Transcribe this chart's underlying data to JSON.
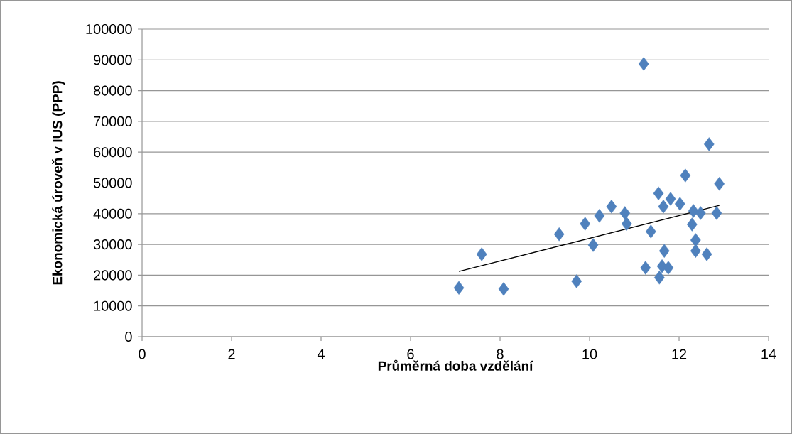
{
  "chart_data": {
    "type": "scatter",
    "xlabel": "Průměrná doba vzdělání",
    "ylabel": "Ekonomická úroveň v IUS (PPP)",
    "series": [
      {
        "color": "#4f81bd",
        "marker": "diamond",
        "x": [
          7.08,
          7.59,
          8.08,
          9.32,
          9.71,
          9.9,
          10.08,
          10.22,
          10.49,
          10.79,
          10.83,
          11.21,
          11.25,
          11.37,
          11.54,
          11.56,
          11.62,
          11.65,
          11.67,
          11.76,
          11.81,
          12.02,
          12.14,
          12.29,
          12.32,
          12.37,
          12.37,
          12.48,
          12.62,
          12.67,
          12.84,
          12.9
        ],
        "values": [
          15900,
          26800,
          15500,
          33300,
          18000,
          36700,
          29800,
          39300,
          42300,
          40200,
          36700,
          88700,
          22400,
          34200,
          46600,
          19200,
          22900,
          42300,
          27900,
          22400,
          44800,
          43200,
          52400,
          36500,
          40900,
          31400,
          27900,
          40200,
          26800,
          62600,
          40200,
          49700
        ]
      },
      {
        "type": "line",
        "color": "#000000",
        "marker": "none",
        "line_style": "solid",
        "x": [
          7.08,
          12.9
        ],
        "values": [
          21200,
          42700
        ]
      }
    ],
    "xlim": [
      0,
      14
    ],
    "xticks": [
      0,
      2,
      4,
      6,
      8,
      10,
      12,
      14
    ],
    "ylim": [
      0,
      100000
    ],
    "yticks": [
      0,
      10000,
      20000,
      30000,
      40000,
      50000,
      60000,
      70000,
      80000,
      90000,
      100000
    ],
    "grid": "y"
  }
}
